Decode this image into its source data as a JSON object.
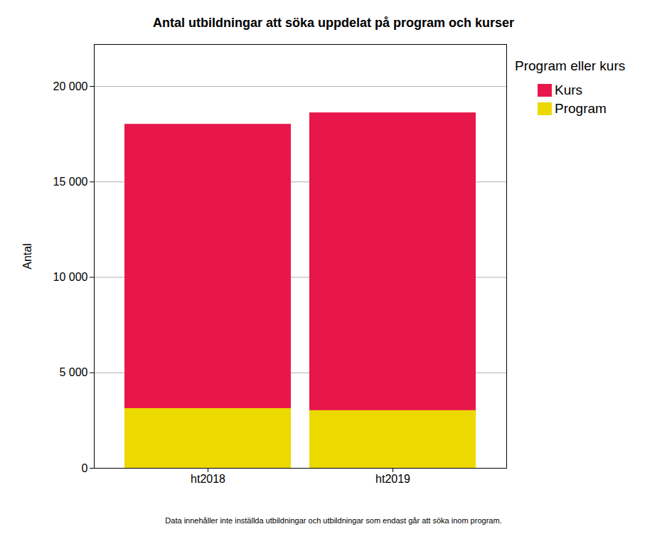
{
  "chart_data": {
    "type": "bar",
    "title": "Antal utbildningar att söka uppdelat på program och kurser",
    "y_label": "Antal",
    "legend_title": "Program eller kurs",
    "caption": "Data innehåller inte inställda utbildningar och utbildningar som endast går att söka inom program.",
    "categories": [
      "ht2018",
      "ht2019"
    ],
    "series": [
      {
        "name": "Kurs",
        "color": "#e8174b",
        "values": [
          14890,
          15600
        ]
      },
      {
        "name": "Program",
        "color": "#ecd900",
        "values": [
          3130,
          3020
        ]
      }
    ],
    "stacked": true,
    "ylim": [
      0,
      22200
    ],
    "yticks": [
      0,
      {
        "value": 5000,
        "label": "5 000"
      },
      {
        "value": 10000,
        "label": "10 000"
      },
      {
        "value": 15000,
        "label": "15 000"
      },
      {
        "value": 20000,
        "label": "20 000"
      }
    ],
    "grid": true,
    "legend": "top-right"
  }
}
